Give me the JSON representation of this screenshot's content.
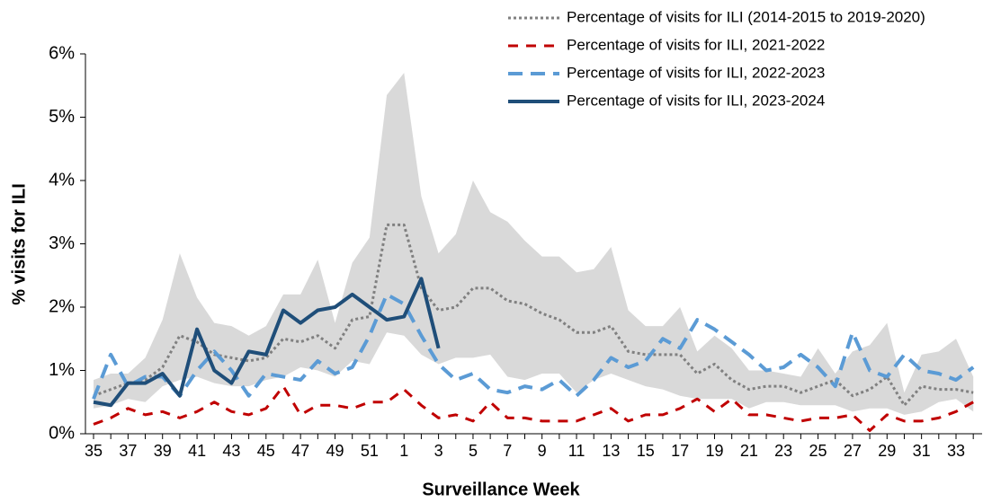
{
  "chart_data": {
    "type": "line",
    "y_label": "% visits for ILI",
    "x_label": "Surveillance Week",
    "categories": [
      "35",
      null,
      "37",
      null,
      "39",
      null,
      "41",
      null,
      "43",
      null,
      "45",
      null,
      "47",
      null,
      "49",
      null,
      "51",
      null,
      "1",
      null,
      "3",
      null,
      "5",
      null,
      "7",
      null,
      "9",
      null,
      "11",
      null,
      "13",
      null,
      "15",
      null,
      "17",
      null,
      "19",
      null,
      "21",
      null,
      "23",
      null,
      "25",
      null,
      "27",
      null,
      "29",
      null,
      "31",
      null,
      "33",
      null
    ],
    "range": {
      "color": "#d9d9d9",
      "high": [
        0.85,
        0.95,
        0.95,
        1.2,
        1.8,
        2.85,
        2.15,
        1.75,
        1.7,
        1.55,
        1.7,
        2.2,
        2.2,
        2.75,
        1.75,
        2.7,
        3.1,
        5.35,
        5.7,
        3.75,
        2.85,
        3.15,
        4.0,
        3.5,
        3.35,
        3.05,
        2.8,
        2.8,
        2.55,
        2.6,
        2.95,
        1.95,
        1.7,
        1.7,
        2.0,
        1.3,
        1.55,
        1.35,
        1.0,
        1.0,
        0.95,
        0.9,
        1.35,
        0.95,
        1.3,
        1.4,
        1.75,
        0.65,
        1.25,
        1.3,
        1.5,
        0.9
      ],
      "low": [
        0.4,
        0.45,
        0.55,
        0.5,
        0.75,
        0.85,
        0.9,
        0.8,
        0.75,
        0.75,
        0.85,
        0.9,
        1.05,
        1.0,
        0.9,
        1.15,
        1.1,
        1.6,
        1.55,
        1.25,
        1.1,
        1.2,
        1.2,
        1.25,
        0.9,
        0.85,
        0.95,
        0.95,
        0.65,
        0.85,
        0.95,
        0.85,
        0.75,
        0.7,
        0.6,
        0.55,
        0.55,
        0.55,
        0.4,
        0.5,
        0.5,
        0.45,
        0.45,
        0.45,
        0.35,
        0.4,
        0.4,
        0.3,
        0.35,
        0.5,
        0.55,
        0.35
      ]
    },
    "series": [
      {
        "name": "Percentage of visits for ILI (2014-2015 to 2019-2020)",
        "color": "#808080",
        "style": "dotted",
        "values": [
          0.6,
          0.7,
          0.8,
          0.85,
          1.05,
          1.55,
          1.45,
          1.25,
          1.2,
          1.15,
          1.2,
          1.5,
          1.45,
          1.55,
          1.35,
          1.8,
          1.85,
          3.3,
          3.3,
          2.3,
          1.95,
          2.0,
          2.3,
          2.3,
          2.1,
          2.05,
          1.9,
          1.8,
          1.6,
          1.6,
          1.7,
          1.3,
          1.25,
          1.25,
          1.25,
          0.95,
          1.1,
          0.85,
          0.7,
          0.75,
          0.75,
          0.65,
          0.75,
          0.85,
          0.6,
          0.7,
          0.9,
          0.45,
          0.75,
          0.7,
          0.7,
          0.65
        ]
      },
      {
        "name": "Percentage of visits for ILI, 2021-2022",
        "color": "#c00000",
        "style": "dashed",
        "values": [
          0.15,
          0.25,
          0.4,
          0.3,
          0.35,
          0.25,
          0.35,
          0.5,
          0.35,
          0.3,
          0.4,
          0.75,
          0.3,
          0.45,
          0.45,
          0.4,
          0.5,
          0.5,
          0.7,
          0.45,
          0.25,
          0.3,
          0.2,
          0.5,
          0.25,
          0.25,
          0.2,
          0.2,
          0.2,
          0.3,
          0.4,
          0.2,
          0.3,
          0.3,
          0.4,
          0.55,
          0.35,
          0.55,
          0.3,
          0.3,
          0.25,
          0.2,
          0.25,
          0.25,
          0.3,
          0.05,
          0.3,
          0.2,
          0.2,
          0.25,
          0.35,
          0.5
        ]
      },
      {
        "name": "Percentage of visits for ILI, 2022-2023",
        "color": "#5b9bd5",
        "style": "longdash",
        "values": [
          0.55,
          1.25,
          0.75,
          0.9,
          0.9,
          0.6,
          1.0,
          1.3,
          1.0,
          0.6,
          0.95,
          0.9,
          0.85,
          1.15,
          0.95,
          1.05,
          1.55,
          2.2,
          2.05,
          1.55,
          1.1,
          0.85,
          0.95,
          0.7,
          0.65,
          0.75,
          0.7,
          0.85,
          0.6,
          0.85,
          1.2,
          1.05,
          1.15,
          1.5,
          1.35,
          1.8,
          1.65,
          1.45,
          1.25,
          1.0,
          1.05,
          1.25,
          1.05,
          0.75,
          1.6,
          1.0,
          0.9,
          1.25,
          1.0,
          0.95,
          0.85,
          1.05
        ]
      },
      {
        "name": "Percentage of visits for ILI, 2023-2024",
        "color": "#1f4e79",
        "style": "solid",
        "values": [
          0.5,
          0.45,
          0.8,
          0.8,
          0.95,
          0.6,
          1.65,
          1.0,
          0.8,
          1.3,
          1.25,
          1.95,
          1.75,
          1.95,
          2.0,
          2.2,
          2.0,
          1.8,
          1.85,
          2.45,
          1.35,
          null,
          null,
          null,
          null,
          null,
          null,
          null,
          null,
          null,
          null,
          null,
          null,
          null,
          null,
          null,
          null,
          null,
          null,
          null,
          null,
          null,
          null,
          null,
          null,
          null,
          null,
          null,
          null,
          null,
          null,
          null
        ]
      }
    ],
    "ylim": [
      0,
      6
    ],
    "yticks": [
      {
        "value": 0,
        "label": "0%"
      },
      {
        "value": 1,
        "label": "1%"
      },
      {
        "value": 2,
        "label": "2%"
      },
      {
        "value": 3,
        "label": "3%"
      },
      {
        "value": 4,
        "label": "4%"
      },
      {
        "value": 5,
        "label": "5%"
      },
      {
        "value": 6,
        "label": "6%"
      }
    ]
  }
}
